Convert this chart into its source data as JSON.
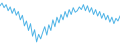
{
  "values": [
    -2.5,
    -1.8,
    -3.0,
    -2.2,
    -3.8,
    -2.8,
    -4.5,
    -3.2,
    -5.0,
    -4.0,
    -6.2,
    -5.0,
    -7.8,
    -6.5,
    -9.0,
    -7.2,
    -10.5,
    -8.8,
    -12.0,
    -10.0,
    -11.2,
    -9.5,
    -8.0,
    -10.2,
    -7.5,
    -9.0,
    -6.2,
    -8.0,
    -5.5,
    -7.0,
    -4.8,
    -6.2,
    -4.0,
    -5.5,
    -3.5,
    -4.8,
    -3.0,
    -4.2,
    -3.8,
    -2.8,
    -3.5,
    -2.2,
    -3.8,
    -2.5,
    -4.2,
    -3.0,
    -4.8,
    -3.5,
    -5.2,
    -4.0,
    -5.8,
    -4.5,
    -6.2,
    -5.0,
    -6.8,
    -5.5,
    -7.2,
    -5.8,
    -6.5,
    -5.2
  ],
  "line_color": "#4db3e6",
  "bg_color": "#ffffff",
  "linewidth": 0.7
}
